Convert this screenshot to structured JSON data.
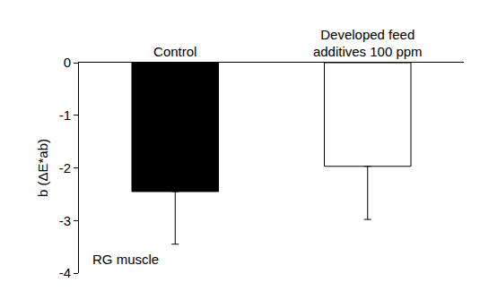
{
  "chart_data": {
    "type": "bar",
    "categories": [
      "Control",
      "Developed feed additives 100 ppm"
    ],
    "values": [
      -2.45,
      -1.97
    ],
    "errors": [
      1.0,
      1.01
    ],
    "colors": [
      "#000000",
      "#ffffff"
    ],
    "y_label": "b (ΔE*ab)",
    "annotations": [
      {
        "text": "RG muscle"
      }
    ],
    "ylim": [
      -4,
      0
    ],
    "yticks": [
      -4,
      -3,
      -2,
      -1,
      0
    ],
    "grid": false
  }
}
